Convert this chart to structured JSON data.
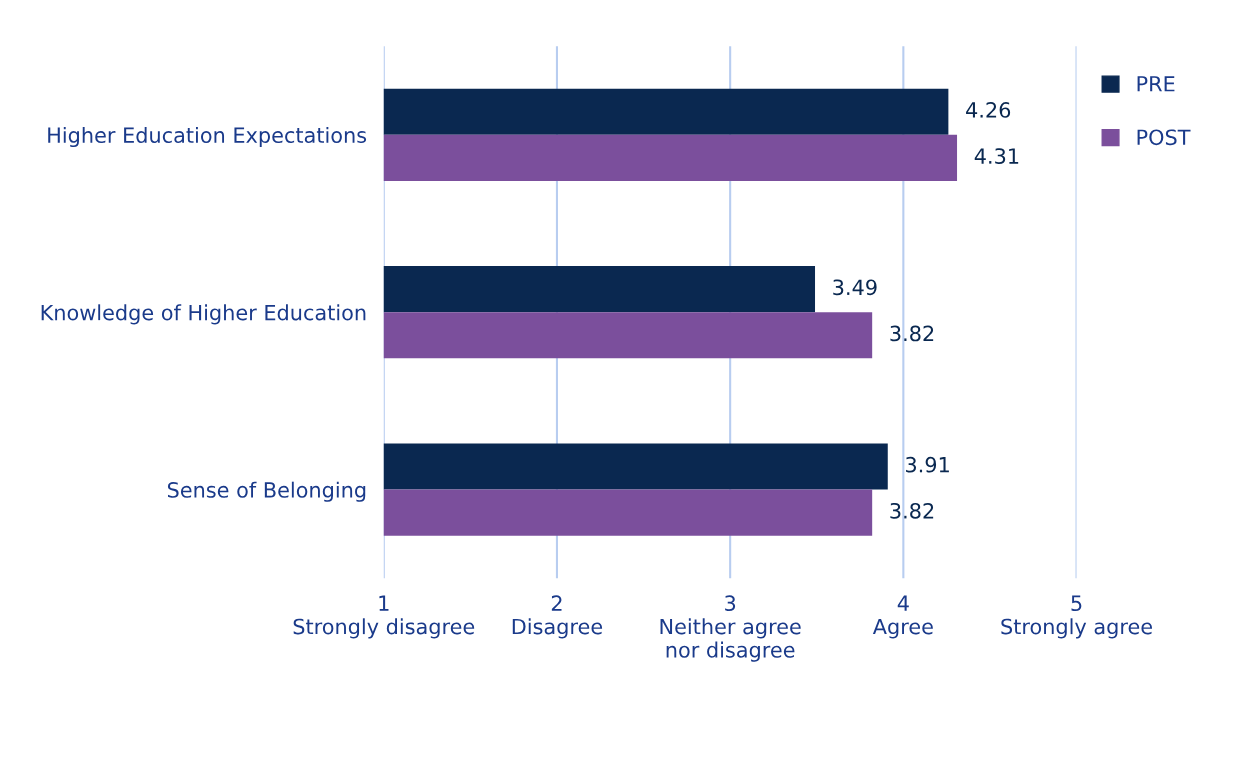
{
  "chart_data": {
    "type": "bar",
    "orientation": "horizontal",
    "categories": [
      "Higher Education Expectations",
      "Knowledge of Higher Education",
      "Sense of Belonging"
    ],
    "series": [
      {
        "name": "PRE",
        "color": "#0a2850",
        "values": [
          4.26,
          3.49,
          3.91
        ]
      },
      {
        "name": "POST",
        "color": "#7b4f9c",
        "values": [
          4.31,
          3.82,
          3.82
        ]
      }
    ],
    "xlim": [
      1,
      5
    ],
    "xticks": [
      {
        "value": 1,
        "label": "1\nStrongly disagree"
      },
      {
        "value": 2,
        "label": "2\nDisagree"
      },
      {
        "value": 3,
        "label": "3\nNeither agree\nnor disagree"
      },
      {
        "value": 4,
        "label": "4\nAgree"
      },
      {
        "value": 5,
        "label": "5\nStrongly agree"
      }
    ],
    "grid": "x",
    "legend": "top right",
    "data_labels": true
  }
}
